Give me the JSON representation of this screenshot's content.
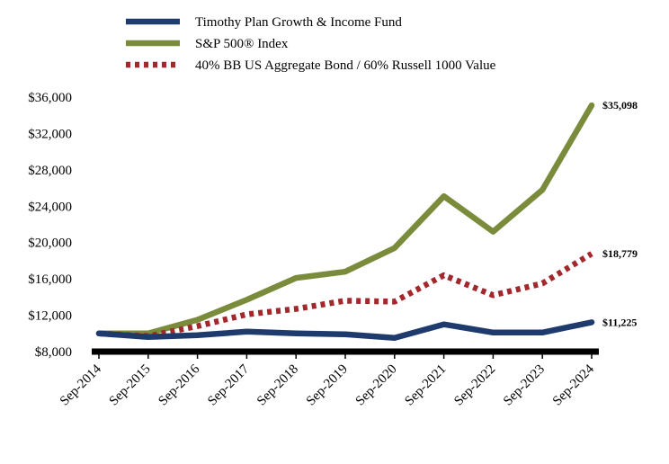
{
  "chart_data": {
    "type": "line",
    "title": "",
    "xlabel": "",
    "ylabel": "",
    "categories": [
      "Sep-2014",
      "Sep-2015",
      "Sep-2016",
      "Sep-2017",
      "Sep-2018",
      "Sep-2019",
      "Sep-2020",
      "Sep-2021",
      "Sep-2022",
      "Sep-2023",
      "Sep-2024"
    ],
    "ylim": [
      8000,
      36000
    ],
    "yticks": [
      8000,
      12000,
      16000,
      20000,
      24000,
      28000,
      32000,
      36000
    ],
    "ytick_labels": [
      "$8,000",
      "$12,000",
      "$16,000",
      "$20,000",
      "$24,000",
      "$28,000",
      "$32,000",
      "$36,000"
    ],
    "series": [
      {
        "name": "Timothy Plan Growth & Income Fund",
        "color": "#1f3b6e",
        "style": "solid",
        "values": [
          10000,
          9600,
          9800,
          10200,
          10000,
          9900,
          9500,
          11000,
          10100,
          10100,
          11225
        ],
        "end_label": "$11,225"
      },
      {
        "name": "S&P 500® Index",
        "color": "#7a8c3c",
        "style": "solid",
        "values": [
          10000,
          10000,
          11500,
          13700,
          16100,
          16800,
          19400,
          25100,
          21200,
          25800,
          35098
        ],
        "end_label": "$35,098"
      },
      {
        "name": "40% BB US Aggregate Bond / 60% Russell 1000 Value",
        "color": "#a3282d",
        "style": "dotted",
        "values": [
          10000,
          9700,
          10800,
          12100,
          12700,
          13600,
          13500,
          16400,
          14200,
          15500,
          18779
        ],
        "end_label": "$18,779"
      }
    ],
    "legend_position": "top"
  }
}
